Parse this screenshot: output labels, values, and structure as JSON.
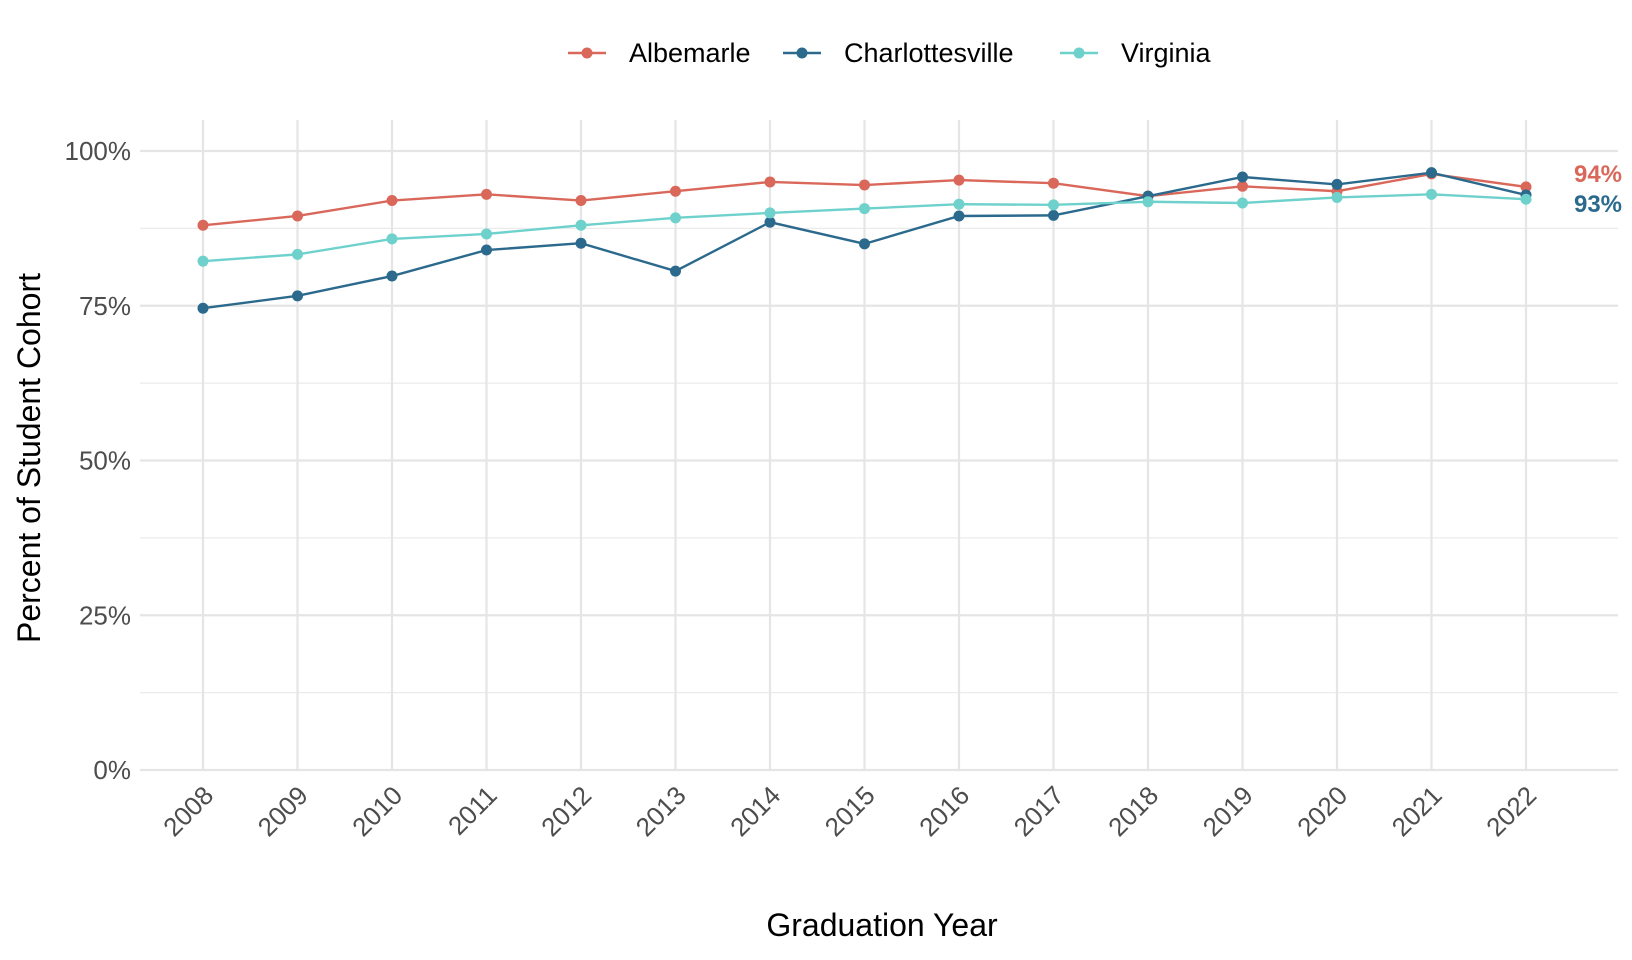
{
  "chart_data": {
    "type": "line",
    "title": "",
    "xlabel": "Graduation Year",
    "ylabel": "Percent of Student Cohort",
    "x": [
      "2008",
      "2009",
      "2010",
      "2011",
      "2012",
      "2013",
      "2014",
      "2015",
      "2016",
      "2017",
      "2018",
      "2019",
      "2020",
      "2021",
      "2022"
    ],
    "ylim": [
      0,
      100
    ],
    "y_ticks": [
      "0%",
      "25%",
      "50%",
      "75%",
      "100%"
    ],
    "grid": true,
    "legend_position": "top",
    "series": [
      {
        "name": "Albemarle",
        "color": "#D9685B",
        "values": [
          88.0,
          89.5,
          92.0,
          93.0,
          92.0,
          93.5,
          95.0,
          94.5,
          95.3,
          94.8,
          92.7,
          94.3,
          93.5,
          96.3,
          94.2
        ]
      },
      {
        "name": "Charlottesville",
        "color": "#2C6A8D",
        "values": [
          74.6,
          76.6,
          79.8,
          84.0,
          85.1,
          80.6,
          88.5,
          85.0,
          89.5,
          89.6,
          92.7,
          95.8,
          94.6,
          96.5,
          92.9
        ]
      },
      {
        "name": "Virginia",
        "color": "#6ED1CC",
        "values": [
          82.2,
          83.3,
          85.8,
          86.6,
          88.0,
          89.2,
          90.0,
          90.7,
          91.4,
          91.3,
          91.8,
          91.6,
          92.5,
          93.0,
          92.2
        ]
      }
    ],
    "end_labels": [
      {
        "series": "Albemarle",
        "text": "94%"
      },
      {
        "series": "Charlottesville",
        "text": "93%"
      }
    ]
  }
}
